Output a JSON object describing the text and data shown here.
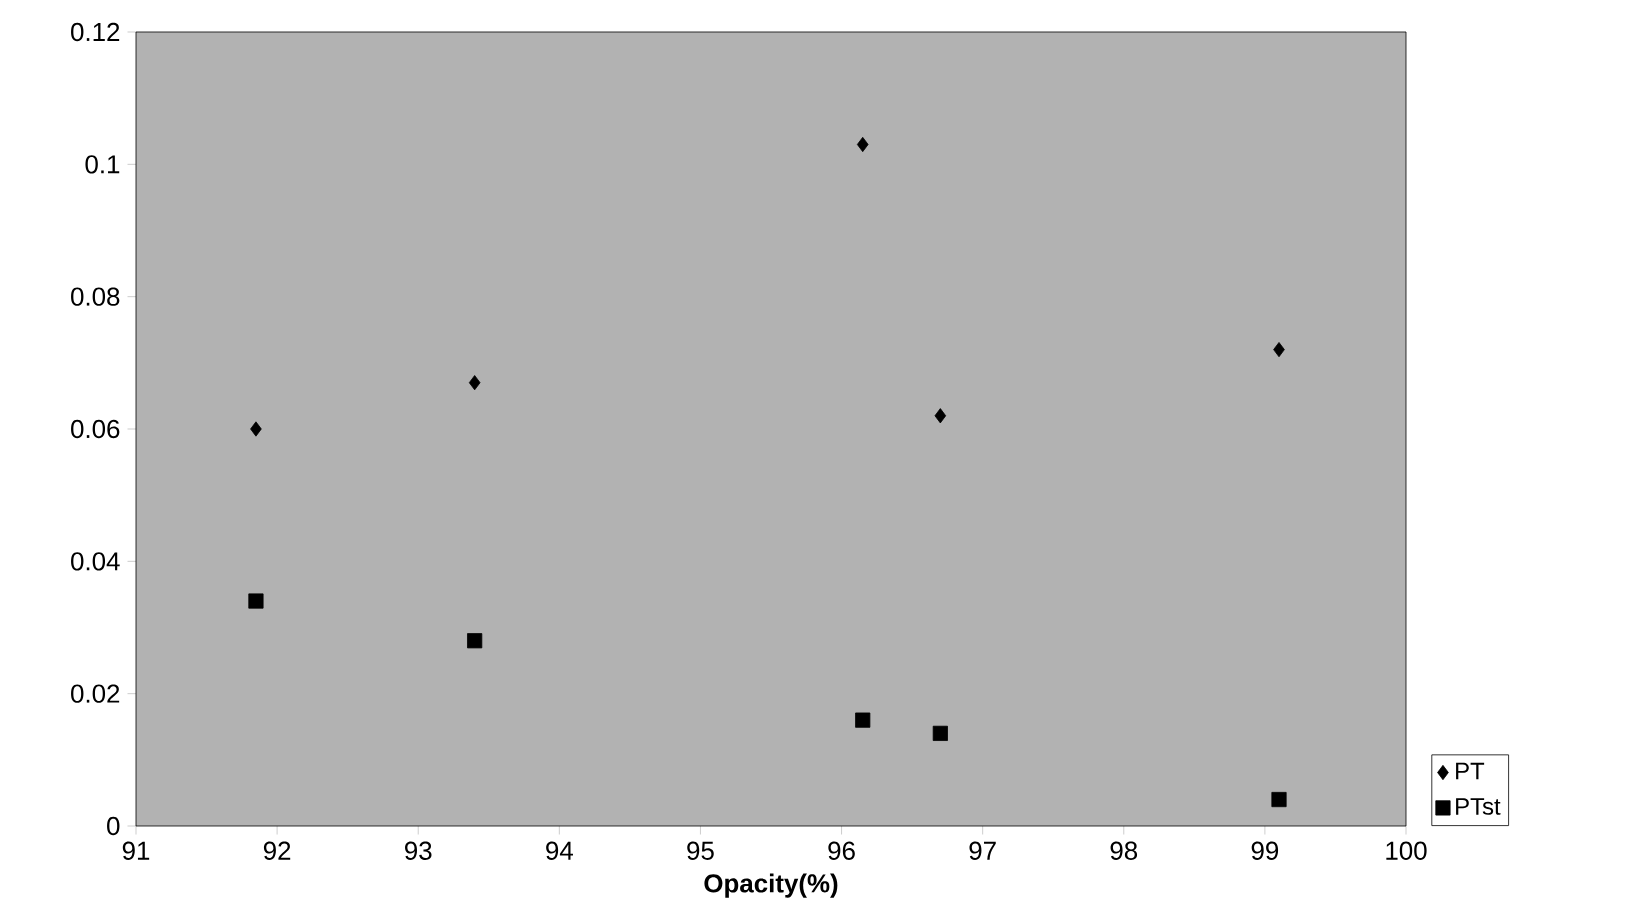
{
  "chart_data": {
    "type": "scatter",
    "xlabel": "Opacity(%)",
    "xlim": [
      91,
      100
    ],
    "xticks": [
      91,
      92,
      93,
      94,
      95,
      96,
      97,
      98,
      99,
      100
    ],
    "ylim": [
      0,
      0.12
    ],
    "yticks": [
      0,
      0.02,
      0.04,
      0.06,
      0.08,
      0.1,
      0.12
    ],
    "legend": "bottom right",
    "grid": false,
    "series": [
      {
        "name": "PT",
        "color": "#000000",
        "marker": "diamond",
        "x": [
          91.85,
          93.4,
          96.15,
          96.7,
          99.1
        ],
        "values": [
          0.06,
          0.067,
          0.103,
          0.062,
          0.072
        ]
      },
      {
        "name": "PTst",
        "color": "#000000",
        "marker": "square",
        "x": [
          91.85,
          93.4,
          96.15,
          96.7,
          99.1
        ],
        "values": [
          0.034,
          0.028,
          0.016,
          0.014,
          0.004
        ]
      }
    ]
  }
}
